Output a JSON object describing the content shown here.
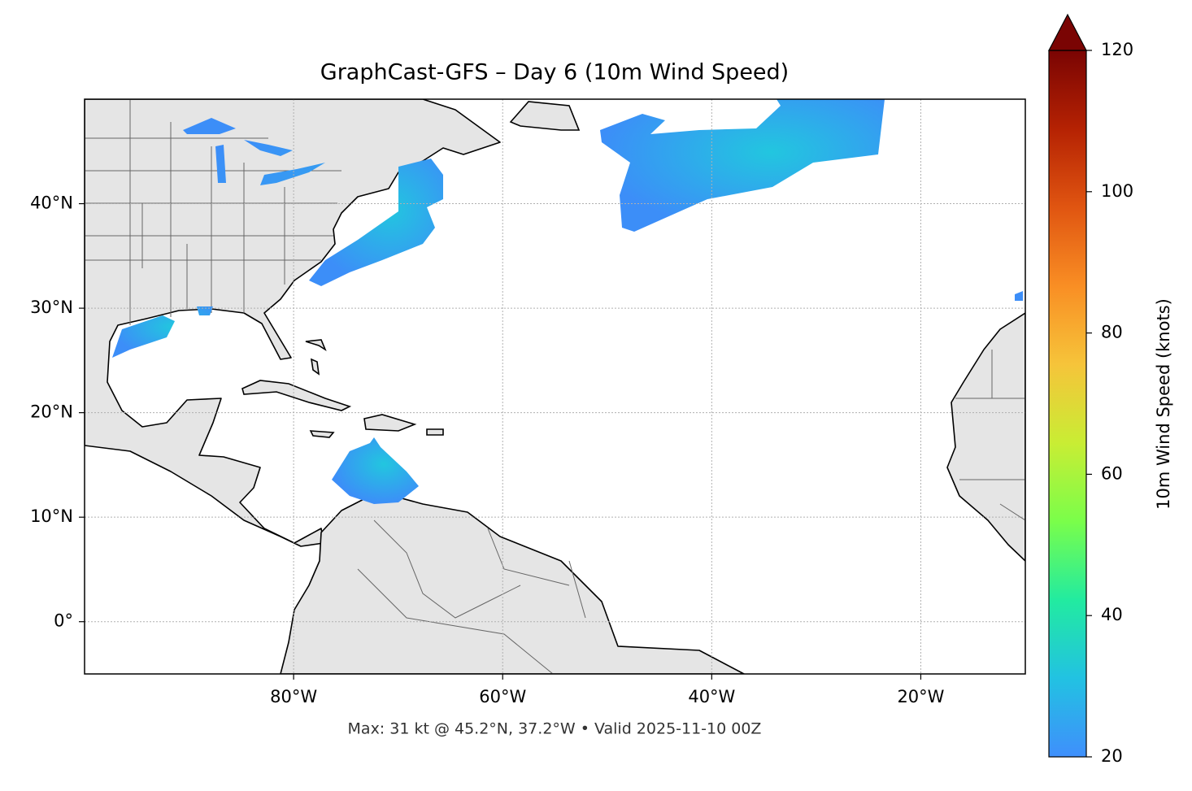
{
  "chart_data": {
    "type": "map",
    "title": "GraphCast-GFS – Day 6 (10m Wind Speed)",
    "subtitle": "Max: 31 kt @ 45.2°N, 37.2°W • Valid 2025-11-10 00Z",
    "xlim": [
      -100,
      -10
    ],
    "ylim": [
      -5,
      50
    ],
    "xticks": [
      {
        "value": -80,
        "label": "80°W"
      },
      {
        "value": -60,
        "label": "60°W"
      },
      {
        "value": -40,
        "label": "40°W"
      },
      {
        "value": -20,
        "label": "20°W"
      }
    ],
    "yticks": [
      {
        "value": 0,
        "label": "0°"
      },
      {
        "value": 10,
        "label": "10°N"
      },
      {
        "value": 20,
        "label": "20°N"
      },
      {
        "value": 30,
        "label": "30°N"
      },
      {
        "value": 40,
        "label": "40°N"
      }
    ],
    "grid": true,
    "colorbar": {
      "label": "10m Wind Speed (knots)",
      "lim": [
        20,
        120
      ],
      "ticks": [
        20,
        40,
        60,
        80,
        100,
        120
      ],
      "colors": [
        "#3f8ffc",
        "#22c2e2",
        "#22eba0",
        "#7afe4a",
        "#c9ed34",
        "#f6c43a",
        "#f98e24",
        "#e05511",
        "#b52203",
        "#7a0403"
      ]
    }
  }
}
